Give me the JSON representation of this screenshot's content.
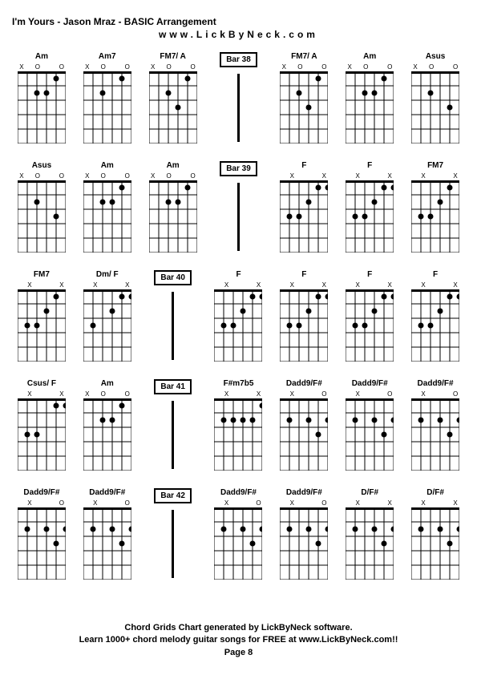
{
  "title": "I'm Yours - Jason Mraz - BASIC Arrangement",
  "subtitle": "www.LickByNeck.com",
  "footer_line1": "Chord Grids Chart generated by LickByNeck software.",
  "footer_line2": "Learn 1000+ chord melody guitar songs for FREE at www.LickByNeck.com!!",
  "page_label": "Page 8",
  "frets": 5,
  "strings": 6,
  "diagram_width": 60,
  "diagram_height": 90,
  "string_spacing": 12,
  "fret_spacing": 18,
  "dot_radius": 3.5,
  "line_color": "#000000",
  "rows": [
    [
      {
        "type": "chord",
        "name": "Am",
        "markers": [
          "X",
          "",
          "O",
          "",
          "",
          "O"
        ],
        "open": [
          4
        ],
        "dots": [
          [
            1,
            2
          ],
          [
            2,
            3
          ],
          [
            2,
            4
          ]
        ]
      },
      {
        "type": "chord",
        "name": "Am7",
        "markers": [
          "X",
          "",
          "O",
          "",
          "",
          "O"
        ],
        "open": [
          4
        ],
        "dots": [
          [
            1,
            2
          ],
          [
            2,
            4
          ]
        ]
      },
      {
        "type": "chord",
        "name": "FM7/ A",
        "markers": [
          "X",
          "",
          "O",
          "",
          "",
          "O"
        ],
        "open": [
          4
        ],
        "dots": [
          [
            1,
            2
          ],
          [
            2,
            4
          ],
          [
            3,
            3
          ]
        ]
      },
      {
        "type": "bar",
        "label": "Bar 38"
      },
      {
        "type": "chord",
        "name": "FM7/ A",
        "markers": [
          "X",
          "",
          "O",
          "",
          "",
          "O"
        ],
        "open": [
          4
        ],
        "dots": [
          [
            1,
            2
          ],
          [
            2,
            4
          ],
          [
            3,
            3
          ]
        ]
      },
      {
        "type": "chord",
        "name": "Am",
        "markers": [
          "X",
          "",
          "O",
          "",
          "",
          "O"
        ],
        "open": [
          4
        ],
        "dots": [
          [
            1,
            2
          ],
          [
            2,
            3
          ],
          [
            2,
            4
          ]
        ]
      },
      {
        "type": "chord",
        "name": "Asus",
        "markers": [
          "X",
          "",
          "O",
          "",
          "",
          "O"
        ],
        "open": [
          4,
          3
        ],
        "dots": [
          [
            2,
            4
          ],
          [
            3,
            2
          ]
        ]
      }
    ],
    [
      {
        "type": "chord",
        "name": "Asus",
        "markers": [
          "X",
          "",
          "O",
          "",
          "",
          "O"
        ],
        "open": [
          4,
          3
        ],
        "dots": [
          [
            2,
            4
          ],
          [
            3,
            2
          ]
        ]
      },
      {
        "type": "chord",
        "name": "Am",
        "markers": [
          "X",
          "",
          "O",
          "",
          "",
          "O"
        ],
        "open": [
          4
        ],
        "dots": [
          [
            1,
            2
          ],
          [
            2,
            3
          ],
          [
            2,
            4
          ]
        ]
      },
      {
        "type": "chord",
        "name": "Am",
        "markers": [
          "X",
          "",
          "O",
          "",
          "",
          "O"
        ],
        "open": [
          4
        ],
        "dots": [
          [
            1,
            2
          ],
          [
            2,
            3
          ],
          [
            2,
            4
          ]
        ]
      },
      {
        "type": "bar",
        "label": "Bar 39"
      },
      {
        "type": "chord",
        "name": "F",
        "markers": [
          "",
          "X",
          "",
          "",
          "",
          "X"
        ],
        "open": [],
        "dots": [
          [
            1,
            1
          ],
          [
            1,
            2
          ],
          [
            2,
            3
          ],
          [
            3,
            4
          ],
          [
            3,
            5
          ]
        ]
      },
      {
        "type": "chord",
        "name": "F",
        "markers": [
          "",
          "X",
          "",
          "",
          "",
          "X"
        ],
        "open": [],
        "dots": [
          [
            1,
            1
          ],
          [
            1,
            2
          ],
          [
            2,
            3
          ],
          [
            3,
            4
          ],
          [
            3,
            5
          ]
        ]
      },
      {
        "type": "chord",
        "name": "FM7",
        "markers": [
          "",
          "X",
          "",
          "",
          "",
          "X"
        ],
        "open": [
          1
        ],
        "dots": [
          [
            1,
            2
          ],
          [
            2,
            3
          ],
          [
            3,
            4
          ],
          [
            3,
            5
          ]
        ]
      }
    ],
    [
      {
        "type": "chord",
        "name": "FM7",
        "markers": [
          "",
          "X",
          "",
          "",
          "",
          "X"
        ],
        "open": [
          1
        ],
        "dots": [
          [
            1,
            2
          ],
          [
            2,
            3
          ],
          [
            3,
            4
          ],
          [
            3,
            5
          ]
        ]
      },
      {
        "type": "chord",
        "name": "Dm/ F",
        "markers": [
          "",
          "X",
          "",
          "",
          "",
          "X"
        ],
        "open": [
          3
        ],
        "dots": [
          [
            1,
            1
          ],
          [
            1,
            2
          ],
          [
            2,
            3
          ],
          [
            3,
            5
          ]
        ]
      },
      {
        "type": "bar",
        "label": "Bar 40"
      },
      {
        "type": "chord",
        "name": "F",
        "markers": [
          "",
          "X",
          "",
          "",
          "",
          "X"
        ],
        "open": [],
        "dots": [
          [
            1,
            1
          ],
          [
            1,
            2
          ],
          [
            2,
            3
          ],
          [
            3,
            4
          ],
          [
            3,
            5
          ]
        ]
      },
      {
        "type": "chord",
        "name": "F",
        "markers": [
          "",
          "X",
          "",
          "",
          "",
          "X"
        ],
        "open": [],
        "dots": [
          [
            1,
            1
          ],
          [
            1,
            2
          ],
          [
            2,
            3
          ],
          [
            3,
            4
          ],
          [
            3,
            5
          ]
        ]
      },
      {
        "type": "chord",
        "name": "F",
        "markers": [
          "",
          "X",
          "",
          "",
          "",
          "X"
        ],
        "open": [],
        "dots": [
          [
            1,
            1
          ],
          [
            1,
            2
          ],
          [
            2,
            3
          ],
          [
            3,
            4
          ],
          [
            3,
            5
          ]
        ]
      },
      {
        "type": "chord",
        "name": "F",
        "markers": [
          "",
          "X",
          "",
          "",
          "",
          "X"
        ],
        "open": [],
        "dots": [
          [
            1,
            1
          ],
          [
            1,
            2
          ],
          [
            2,
            3
          ],
          [
            3,
            4
          ],
          [
            3,
            5
          ]
        ]
      }
    ],
    [
      {
        "type": "chord",
        "name": "Csus/ F",
        "markers": [
          "",
          "X",
          "",
          "",
          "",
          "X"
        ],
        "open": [
          3
        ],
        "dots": [
          [
            1,
            1
          ],
          [
            1,
            2
          ],
          [
            3,
            4
          ],
          [
            3,
            5
          ]
        ]
      },
      {
        "type": "chord",
        "name": "Am",
        "markers": [
          "X",
          "",
          "O",
          "",
          "",
          "O"
        ],
        "open": [
          4
        ],
        "dots": [
          [
            1,
            2
          ],
          [
            2,
            3
          ],
          [
            2,
            4
          ]
        ]
      },
      {
        "type": "bar",
        "label": "Bar 41"
      },
      {
        "type": "chord",
        "name": "F#m7b5",
        "markers": [
          "",
          "X",
          "",
          "",
          "",
          "X"
        ],
        "open": [],
        "dots": [
          [
            1,
            1
          ],
          [
            2,
            2
          ],
          [
            2,
            3
          ],
          [
            2,
            4
          ],
          [
            2,
            5
          ]
        ]
      },
      {
        "type": "chord",
        "name": "Dadd9/F#",
        "markers": [
          "",
          "X",
          "",
          "",
          "",
          "O"
        ],
        "open": [
          4
        ],
        "dots": [
          [
            2,
            1
          ],
          [
            2,
            3
          ],
          [
            2,
            5
          ],
          [
            3,
            2
          ]
        ]
      },
      {
        "type": "chord",
        "name": "Dadd9/F#",
        "markers": [
          "",
          "X",
          "",
          "",
          "",
          "O"
        ],
        "open": [
          4
        ],
        "dots": [
          [
            2,
            1
          ],
          [
            2,
            3
          ],
          [
            2,
            5
          ],
          [
            3,
            2
          ]
        ]
      },
      {
        "type": "chord",
        "name": "Dadd9/F#",
        "markers": [
          "",
          "X",
          "",
          "",
          "",
          "O"
        ],
        "open": [
          4
        ],
        "dots": [
          [
            2,
            1
          ],
          [
            2,
            3
          ],
          [
            2,
            5
          ],
          [
            3,
            2
          ]
        ]
      }
    ],
    [
      {
        "type": "chord",
        "name": "Dadd9/F#",
        "markers": [
          "",
          "X",
          "",
          "",
          "",
          "O"
        ],
        "open": [
          4
        ],
        "dots": [
          [
            2,
            1
          ],
          [
            2,
            3
          ],
          [
            2,
            5
          ],
          [
            3,
            2
          ]
        ]
      },
      {
        "type": "chord",
        "name": "Dadd9/F#",
        "markers": [
          "",
          "X",
          "",
          "",
          "",
          "O"
        ],
        "open": [
          4
        ],
        "dots": [
          [
            2,
            1
          ],
          [
            2,
            3
          ],
          [
            2,
            5
          ],
          [
            3,
            2
          ]
        ]
      },
      {
        "type": "bar",
        "label": "Bar 42"
      },
      {
        "type": "chord",
        "name": "Dadd9/F#",
        "markers": [
          "",
          "X",
          "",
          "",
          "",
          "O"
        ],
        "open": [
          4
        ],
        "dots": [
          [
            2,
            1
          ],
          [
            2,
            3
          ],
          [
            2,
            5
          ],
          [
            3,
            2
          ]
        ]
      },
      {
        "type": "chord",
        "name": "Dadd9/F#",
        "markers": [
          "",
          "X",
          "",
          "",
          "",
          "O"
        ],
        "open": [
          4
        ],
        "dots": [
          [
            2,
            1
          ],
          [
            2,
            3
          ],
          [
            2,
            5
          ],
          [
            3,
            2
          ]
        ]
      },
      {
        "type": "chord",
        "name": "D/F#",
        "markers": [
          "",
          "X",
          "",
          "",
          "",
          "X"
        ],
        "open": [
          4
        ],
        "dots": [
          [
            2,
            1
          ],
          [
            2,
            3
          ],
          [
            2,
            5
          ],
          [
            3,
            2
          ]
        ]
      },
      {
        "type": "chord",
        "name": "D/F#",
        "markers": [
          "",
          "X",
          "",
          "",
          "",
          "X"
        ],
        "open": [
          4
        ],
        "dots": [
          [
            2,
            1
          ],
          [
            2,
            3
          ],
          [
            2,
            5
          ],
          [
            3,
            2
          ]
        ]
      }
    ]
  ]
}
